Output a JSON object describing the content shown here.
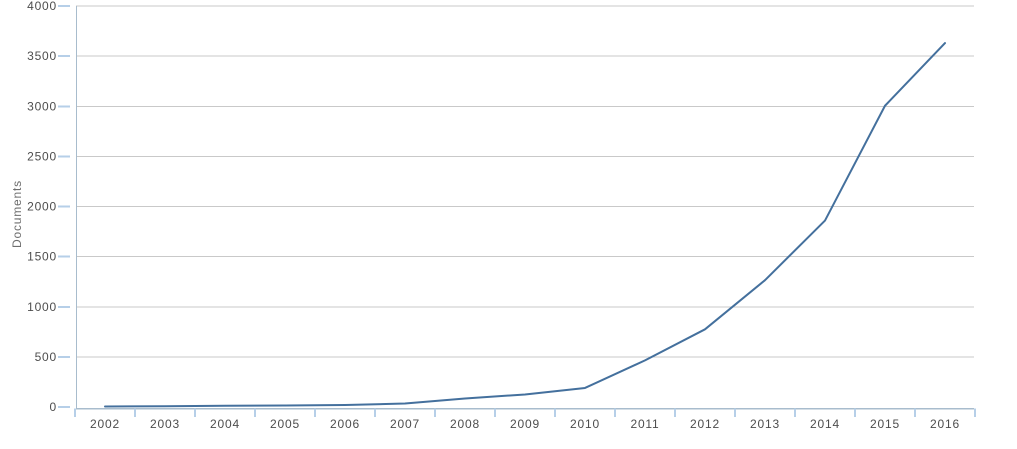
{
  "chart_data": {
    "type": "line",
    "title": "",
    "ylabel": "Documents",
    "xlabel": "",
    "categories": [
      "2002",
      "2003",
      "2004",
      "2005",
      "2006",
      "2007",
      "2008",
      "2009",
      "2010",
      "2011",
      "2012",
      "2013",
      "2014",
      "2015",
      "2016"
    ],
    "series": [
      {
        "name": "Documents",
        "values": [
          5,
          8,
          12,
          15,
          20,
          35,
          85,
          125,
          190,
          465,
          775,
          1265,
          1860,
          3005,
          3630
        ]
      }
    ],
    "ylim": [
      0,
      4000
    ],
    "yticks": [
      0,
      500,
      1000,
      1500,
      2000,
      2500,
      3000,
      3500,
      4000
    ],
    "grid": true,
    "legend_position": "none",
    "line_color": "#44709d",
    "grid_color": "#c9c9c9",
    "axis_color": "#a8bccd",
    "tick_color": "#b6cfe8",
    "label_color": "#4d4d4d",
    "ylabel_color": "#6e6e6e"
  }
}
